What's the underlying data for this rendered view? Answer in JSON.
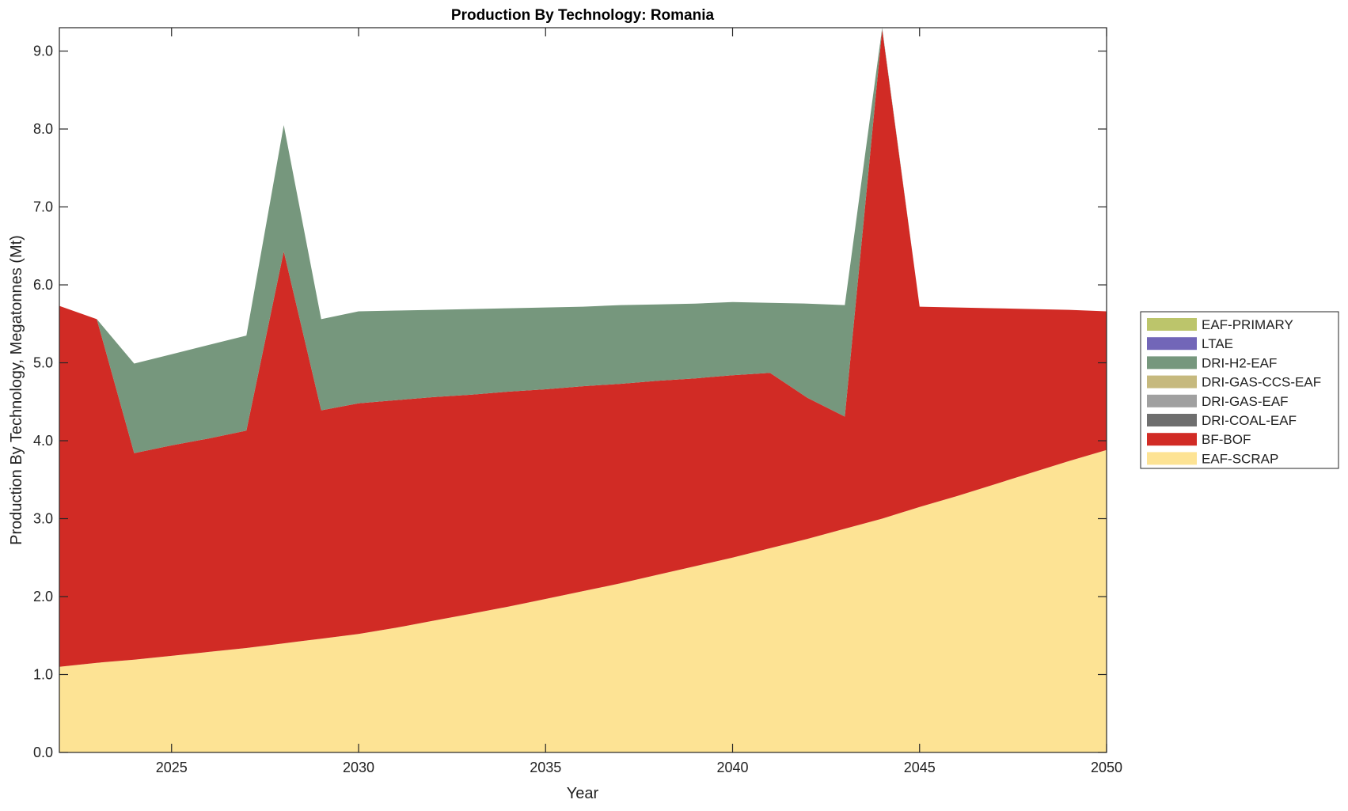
{
  "chart_data": {
    "type": "area",
    "stacked": true,
    "title": "Production By Technology: Romania",
    "xlabel": "Year",
    "ylabel": "Production By Technology, Megatonnes (Mt)",
    "xlim": [
      2022,
      2050
    ],
    "ylim": [
      0,
      9.3
    ],
    "xticks": [
      2025,
      2030,
      2035,
      2040,
      2045,
      2050
    ],
    "yticks": [
      0,
      1,
      2,
      3,
      4,
      5,
      6,
      7,
      8,
      9
    ],
    "ytick_labels": [
      "0.0",
      "1.0",
      "2.0",
      "3.0",
      "4.0",
      "5.0",
      "6.0",
      "7.0",
      "8.0",
      "9.0"
    ],
    "grid": false,
    "legend_position": "right",
    "x": [
      2022,
      2023,
      2024,
      2025,
      2026,
      2027,
      2028,
      2029,
      2030,
      2031,
      2032,
      2033,
      2034,
      2035,
      2036,
      2037,
      2038,
      2039,
      2040,
      2041,
      2042,
      2043,
      2044,
      2045,
      2046,
      2047,
      2048,
      2049,
      2050
    ],
    "series": [
      {
        "name": "EAF-SCRAP",
        "color": "#fde394",
        "values": [
          1.1,
          1.15,
          1.19,
          1.24,
          1.29,
          1.34,
          1.4,
          1.46,
          1.52,
          1.6,
          1.69,
          1.78,
          1.87,
          1.97,
          2.07,
          2.17,
          2.28,
          2.39,
          2.5,
          2.62,
          2.74,
          2.87,
          3.0,
          3.15,
          3.29,
          3.44,
          3.59,
          3.74,
          3.88
        ]
      },
      {
        "name": "BF-BOF",
        "color": "#d12b25",
        "values": [
          4.63,
          4.41,
          2.65,
          2.7,
          2.74,
          2.79,
          5.03,
          2.93,
          2.96,
          2.92,
          2.87,
          2.81,
          2.76,
          2.69,
          2.63,
          2.56,
          2.49,
          2.41,
          2.34,
          2.25,
          1.81,
          1.44,
          6.28,
          2.57,
          2.42,
          2.26,
          2.1,
          1.94,
          1.78
        ]
      },
      {
        "name": "DRI-COAL-EAF",
        "color": "#6e6e6e",
        "values": [
          0,
          0,
          0,
          0,
          0,
          0,
          0,
          0,
          0,
          0,
          0,
          0,
          0,
          0,
          0,
          0,
          0,
          0,
          0,
          0,
          0,
          0,
          0,
          0,
          0,
          0,
          0,
          0,
          0
        ]
      },
      {
        "name": "DRI-GAS-EAF",
        "color": "#a0a0a0",
        "values": [
          0,
          0,
          0,
          0,
          0,
          0,
          0,
          0,
          0,
          0,
          0,
          0,
          0,
          0,
          0,
          0,
          0,
          0,
          0,
          0,
          0,
          0,
          0,
          0,
          0,
          0,
          0,
          0,
          0
        ]
      },
      {
        "name": "DRI-GAS-CCS-EAF",
        "color": "#c6b97e",
        "values": [
          0,
          0,
          0,
          0,
          0,
          0,
          0,
          0,
          0,
          0,
          0,
          0,
          0,
          0,
          0,
          0,
          0,
          0,
          0,
          0,
          0,
          0,
          0,
          0,
          0,
          0,
          0,
          0,
          0
        ]
      },
      {
        "name": "DRI-H2-EAF",
        "color": "#76977d",
        "values": [
          0,
          0,
          1.15,
          1.17,
          1.2,
          1.22,
          1.62,
          1.17,
          1.18,
          1.15,
          1.12,
          1.1,
          1.07,
          1.05,
          1.02,
          1.01,
          0.98,
          0.96,
          0.94,
          0.9,
          1.21,
          1.43,
          0.02,
          0,
          0,
          0,
          0,
          0,
          0
        ]
      },
      {
        "name": "LTAE",
        "color": "#7266b8",
        "values": [
          0,
          0,
          0,
          0,
          0,
          0,
          0,
          0,
          0,
          0,
          0,
          0,
          0,
          0,
          0,
          0,
          0,
          0,
          0,
          0,
          0,
          0,
          0,
          0,
          0,
          0,
          0,
          0,
          0
        ]
      },
      {
        "name": "EAF-PRIMARY",
        "color": "#bcc56b",
        "values": [
          0,
          0,
          0,
          0,
          0,
          0,
          0,
          0,
          0,
          0,
          0,
          0,
          0,
          0,
          0,
          0,
          0,
          0,
          0,
          0,
          0,
          0,
          0,
          0,
          0,
          0,
          0,
          0,
          0
        ]
      }
    ],
    "legend_order": [
      "EAF-PRIMARY",
      "LTAE",
      "DRI-H2-EAF",
      "DRI-GAS-CCS-EAF",
      "DRI-GAS-EAF",
      "DRI-COAL-EAF",
      "BF-BOF",
      "EAF-SCRAP"
    ]
  }
}
